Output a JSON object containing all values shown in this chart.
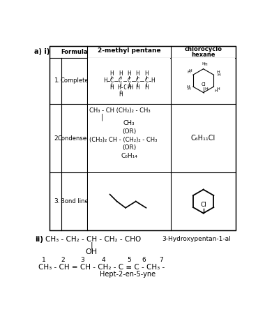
{
  "bg_color": "#ffffff",
  "condensed_2methyl": [
    "CH₃ - CH (CH₂)₂ - CH₃",
    "|",
    "CH₃",
    "(OR)",
    "(CH₃)₂ CH - (CH₂)₂ - CH₃",
    "(OR)",
    "C₆H₁₄"
  ],
  "condensed_chloro": "C₆H₁₁Cl",
  "ii_line1": "CH₃ - CH₂ - CH - CH₂ - CHO",
  "ii_line1_name": "3-Hydroxypentan-1-al",
  "ii_line3": "OH",
  "ii_line4": "CH₃ - CH = CH - CH₂ - C ≡ C - CH₃ -",
  "ii_line4_name": "Hept-2-en-5-yne"
}
